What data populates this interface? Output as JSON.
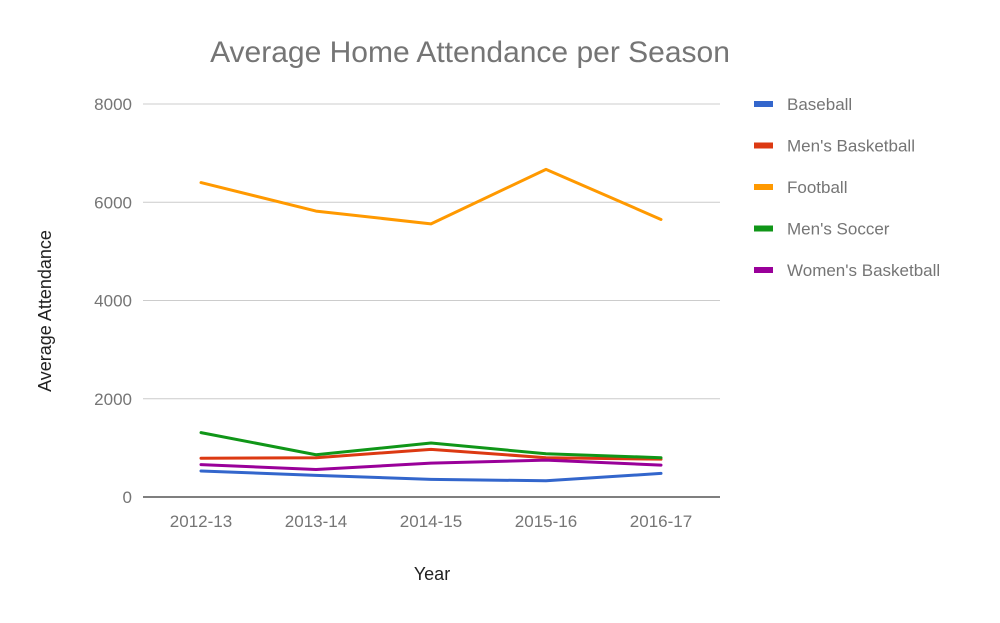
{
  "chart_data": {
    "type": "line",
    "title": "Average Home Attendance per Season",
    "xlabel": "Year",
    "ylabel": "Average Attendance",
    "categories": [
      "2012-13",
      "2013-14",
      "2014-15",
      "2015-16",
      "2016-17"
    ],
    "ylim": [
      0,
      8000
    ],
    "yticks": [
      0,
      2000,
      4000,
      6000,
      8000
    ],
    "grid": true,
    "legend_position": "right",
    "series": [
      {
        "name": "Baseball",
        "color": "#3366cc",
        "values": [
          530,
          440,
          360,
          330,
          480
        ]
      },
      {
        "name": "Men's Basketball",
        "color": "#dc3912",
        "values": [
          790,
          800,
          970,
          800,
          770
        ]
      },
      {
        "name": "Football",
        "color": "#ff9900",
        "values": [
          6400,
          5820,
          5560,
          6670,
          5650
        ]
      },
      {
        "name": "Men's Soccer",
        "color": "#109618",
        "values": [
          1310,
          860,
          1100,
          880,
          800
        ]
      },
      {
        "name": "Women's Basketball",
        "color": "#990099",
        "values": [
          660,
          560,
          690,
          750,
          650
        ]
      }
    ]
  }
}
